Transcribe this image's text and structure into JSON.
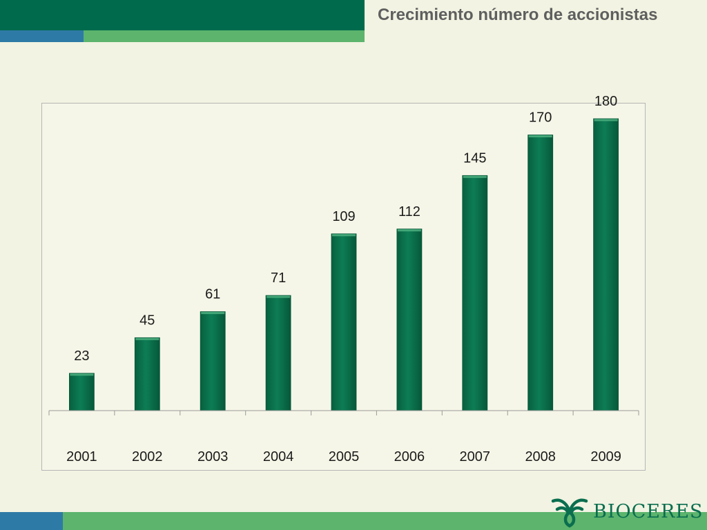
{
  "slide": {
    "title": "Crecimiento número de accionistas",
    "colors": {
      "background": "#f2f3e2",
      "dark_green": "#006b4c",
      "light_green": "#5cb46d",
      "blue": "#2e7aa6",
      "text_gray": "#5f5f5f"
    }
  },
  "logo": {
    "text": "BIOCERES",
    "icon": "leaf-emblem-icon",
    "color": "#0a6e4f"
  },
  "chart_data": {
    "type": "bar",
    "categories": [
      "2001",
      "2002",
      "2003",
      "2004",
      "2005",
      "2006",
      "2007",
      "2008",
      "2009"
    ],
    "values": [
      23,
      45,
      61,
      71,
      109,
      112,
      145,
      170,
      180
    ],
    "title": "",
    "xlabel": "",
    "ylabel": "",
    "ylim": [
      0,
      180
    ],
    "grid": false,
    "legend": "none",
    "data_labels": true,
    "bar_color": "#0a7a52"
  }
}
